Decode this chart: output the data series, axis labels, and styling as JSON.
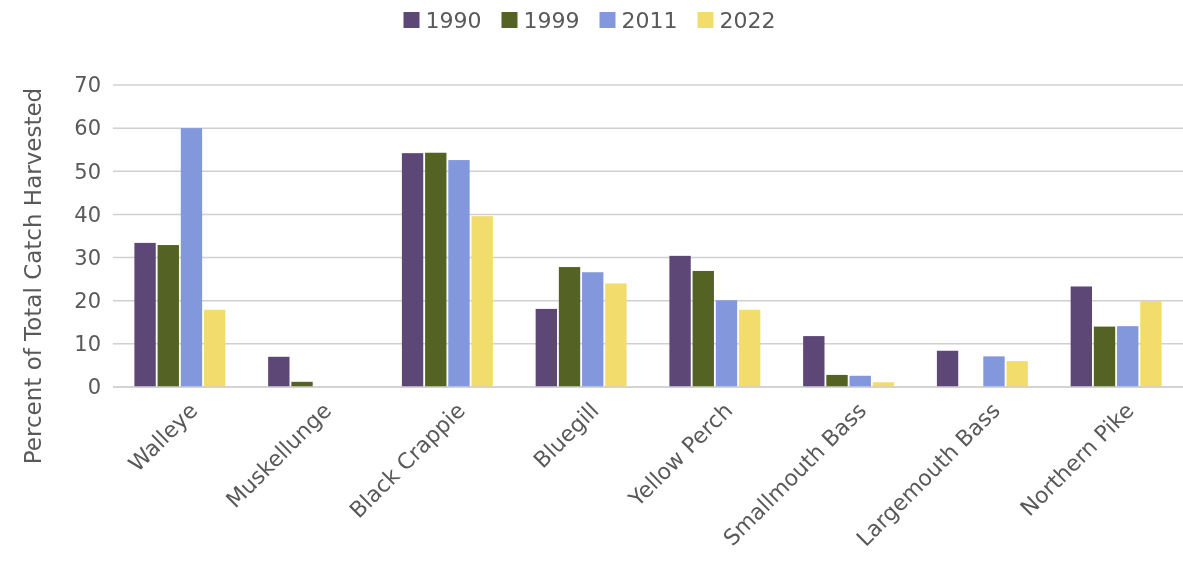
{
  "chart_data": {
    "type": "bar",
    "ylabel": "Percent of Total Catch Harvested",
    "categories": [
      "Walleye",
      "Muskellunge",
      "Black Crappie",
      "Bluegill",
      "Yellow Perch",
      "Smallmouth Bass",
      "Largemouth Bass",
      "Northern Pike"
    ],
    "series": [
      {
        "name": "1990",
        "color": "#5c4776",
        "values": [
          33.4,
          7.0,
          54.2,
          18.1,
          30.4,
          11.8,
          8.4,
          23.3
        ]
      },
      {
        "name": "1999",
        "color": "#546223",
        "values": [
          32.9,
          1.2,
          54.3,
          27.8,
          26.9,
          2.8,
          0,
          14.0
        ]
      },
      {
        "name": "2011",
        "color": "#8297dc",
        "values": [
          60,
          0,
          52.6,
          26.6,
          20.1,
          2.6,
          7.1,
          14.1
        ]
      },
      {
        "name": "2022",
        "color": "#f2dc6b",
        "values": [
          17.9,
          0,
          39.6,
          24.0,
          17.9,
          1.1,
          6.0,
          19.9
        ]
      }
    ],
    "ylim": [
      0,
      70
    ],
    "yticks": [
      0,
      10,
      20,
      30,
      40,
      50,
      60,
      70
    ],
    "grid": "y",
    "legend": "top"
  }
}
